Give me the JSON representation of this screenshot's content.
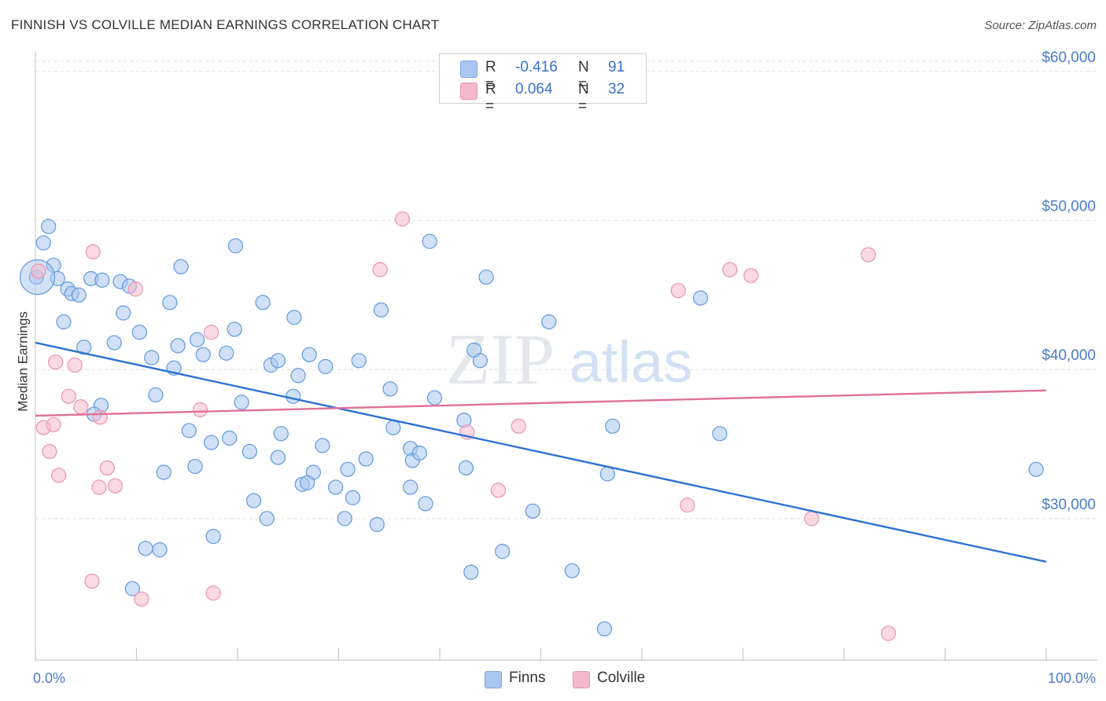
{
  "title": "FINNISH VS COLVILLE MEDIAN EARNINGS CORRELATION CHART",
  "source": "Source: ZipAtlas.com",
  "watermark": {
    "zip": "ZIP",
    "atlas": "atlas"
  },
  "legend": {
    "rows": [
      {
        "r_label": "R = ",
        "r_value": "-0.416",
        "n_label": "N = ",
        "n_value": "91",
        "color": "#a9c6ef"
      },
      {
        "r_label": "R = ",
        "r_value": "0.064",
        "n_label": "N = ",
        "n_value": "32",
        "color": "#f5b9cc"
      }
    ]
  },
  "bottom_legend": [
    {
      "label": "Finns",
      "color": "#a9c6ef"
    },
    {
      "label": "Colville",
      "color": "#f5b9cc"
    }
  ],
  "chart_data": {
    "type": "scatter",
    "xlabel": "",
    "ylabel": "Median Earnings",
    "xlim": [
      0,
      100
    ],
    "ylim": [
      20500,
      61000
    ],
    "x_tick_labels": [
      "0.0%",
      "100.0%"
    ],
    "y_ticks": [
      30000,
      40000,
      50000,
      60000
    ],
    "y_tick_labels": [
      "$30,000",
      "$40,000",
      "$50,000",
      "$60,000"
    ],
    "grid": true,
    "legend_position": "top-center",
    "series": [
      {
        "name": "Finns",
        "color": "#6a9fe0",
        "fill": "#a9c6ef",
        "trend": {
          "x": [
            0,
            100
          ],
          "y": [
            41800,
            27100
          ],
          "color": "#2f72d0"
        },
        "points": [
          [
            0.1,
            46200
          ],
          [
            1.3,
            49600
          ],
          [
            0.8,
            48500
          ],
          [
            1.8,
            47000
          ],
          [
            2.2,
            46100
          ],
          [
            3.2,
            45400
          ],
          [
            3.6,
            45100
          ],
          [
            4.3,
            45000
          ],
          [
            2.8,
            43200
          ],
          [
            5.5,
            46100
          ],
          [
            6.6,
            46000
          ],
          [
            8.4,
            45900
          ],
          [
            9.3,
            45600
          ],
          [
            14.4,
            46900
          ],
          [
            19.8,
            48300
          ],
          [
            39.0,
            48600
          ],
          [
            44.6,
            46200
          ],
          [
            8.7,
            43800
          ],
          [
            10.3,
            42500
          ],
          [
            13.3,
            44500
          ],
          [
            22.5,
            44500
          ],
          [
            25.6,
            43500
          ],
          [
            34.2,
            44000
          ],
          [
            50.8,
            43200
          ],
          [
            65.8,
            44800
          ],
          [
            4.8,
            41500
          ],
          [
            7.8,
            41800
          ],
          [
            11.5,
            40800
          ],
          [
            14.1,
            41600
          ],
          [
            16.0,
            42000
          ],
          [
            16.6,
            41000
          ],
          [
            18.9,
            41100
          ],
          [
            19.7,
            42700
          ],
          [
            23.3,
            40300
          ],
          [
            24.0,
            40600
          ],
          [
            27.1,
            41000
          ],
          [
            28.7,
            40200
          ],
          [
            32.0,
            40600
          ],
          [
            43.4,
            41300
          ],
          [
            44.0,
            40600
          ],
          [
            13.7,
            40100
          ],
          [
            26.0,
            39600
          ],
          [
            11.9,
            38300
          ],
          [
            20.4,
            37800
          ],
          [
            25.5,
            38200
          ],
          [
            35.1,
            38700
          ],
          [
            39.5,
            38100
          ],
          [
            6.5,
            37600
          ],
          [
            5.8,
            37000
          ],
          [
            15.2,
            35900
          ],
          [
            17.4,
            35100
          ],
          [
            19.2,
            35400
          ],
          [
            24.3,
            35700
          ],
          [
            28.4,
            34900
          ],
          [
            35.4,
            36100
          ],
          [
            42.4,
            36600
          ],
          [
            57.1,
            36200
          ],
          [
            67.7,
            35700
          ],
          [
            21.2,
            34500
          ],
          [
            24.0,
            34100
          ],
          [
            32.7,
            34000
          ],
          [
            37.1,
            34700
          ],
          [
            37.3,
            33900
          ],
          [
            38.0,
            34400
          ],
          [
            12.7,
            33100
          ],
          [
            15.8,
            33500
          ],
          [
            27.5,
            33100
          ],
          [
            30.9,
            33300
          ],
          [
            42.6,
            33400
          ],
          [
            26.4,
            32300
          ],
          [
            26.9,
            32400
          ],
          [
            29.7,
            32100
          ],
          [
            37.1,
            32100
          ],
          [
            31.4,
            31400
          ],
          [
            21.6,
            31200
          ],
          [
            38.6,
            31000
          ],
          [
            22.9,
            30000
          ],
          [
            30.6,
            30000
          ],
          [
            33.8,
            29600
          ],
          [
            49.2,
            30500
          ],
          [
            56.6,
            33000
          ],
          [
            99.0,
            33300
          ],
          [
            17.6,
            28800
          ],
          [
            10.9,
            28000
          ],
          [
            12.3,
            27900
          ],
          [
            46.2,
            27800
          ],
          [
            43.1,
            26400
          ],
          [
            53.1,
            26500
          ],
          [
            9.6,
            25300
          ],
          [
            56.3,
            22600
          ],
          [
            0.2,
            46200
          ]
        ]
      },
      {
        "name": "Colville",
        "color": "#ea9ab6",
        "fill": "#f5b9cc",
        "trend": {
          "x": [
            0,
            100
          ],
          "y": [
            36900,
            38600
          ],
          "color": "#e0719a"
        },
        "points": [
          [
            0.3,
            46600
          ],
          [
            5.7,
            47900
          ],
          [
            36.3,
            50100
          ],
          [
            34.1,
            46700
          ],
          [
            68.7,
            46700
          ],
          [
            70.8,
            46300
          ],
          [
            82.4,
            47700
          ],
          [
            9.9,
            45400
          ],
          [
            63.6,
            45300
          ],
          [
            17.4,
            42500
          ],
          [
            2.0,
            40500
          ],
          [
            3.9,
            40300
          ],
          [
            3.3,
            38200
          ],
          [
            4.5,
            37500
          ],
          [
            16.3,
            37300
          ],
          [
            6.4,
            36800
          ],
          [
            0.8,
            36100
          ],
          [
            1.8,
            36300
          ],
          [
            42.7,
            35800
          ],
          [
            47.8,
            36200
          ],
          [
            1.4,
            34500
          ],
          [
            7.1,
            33400
          ],
          [
            2.3,
            32900
          ],
          [
            6.3,
            32100
          ],
          [
            7.9,
            32200
          ],
          [
            45.8,
            31900
          ],
          [
            64.5,
            30900
          ],
          [
            76.8,
            30000
          ],
          [
            5.6,
            25800
          ],
          [
            10.5,
            24600
          ],
          [
            17.6,
            25000
          ],
          [
            84.4,
            22300
          ]
        ]
      }
    ]
  }
}
